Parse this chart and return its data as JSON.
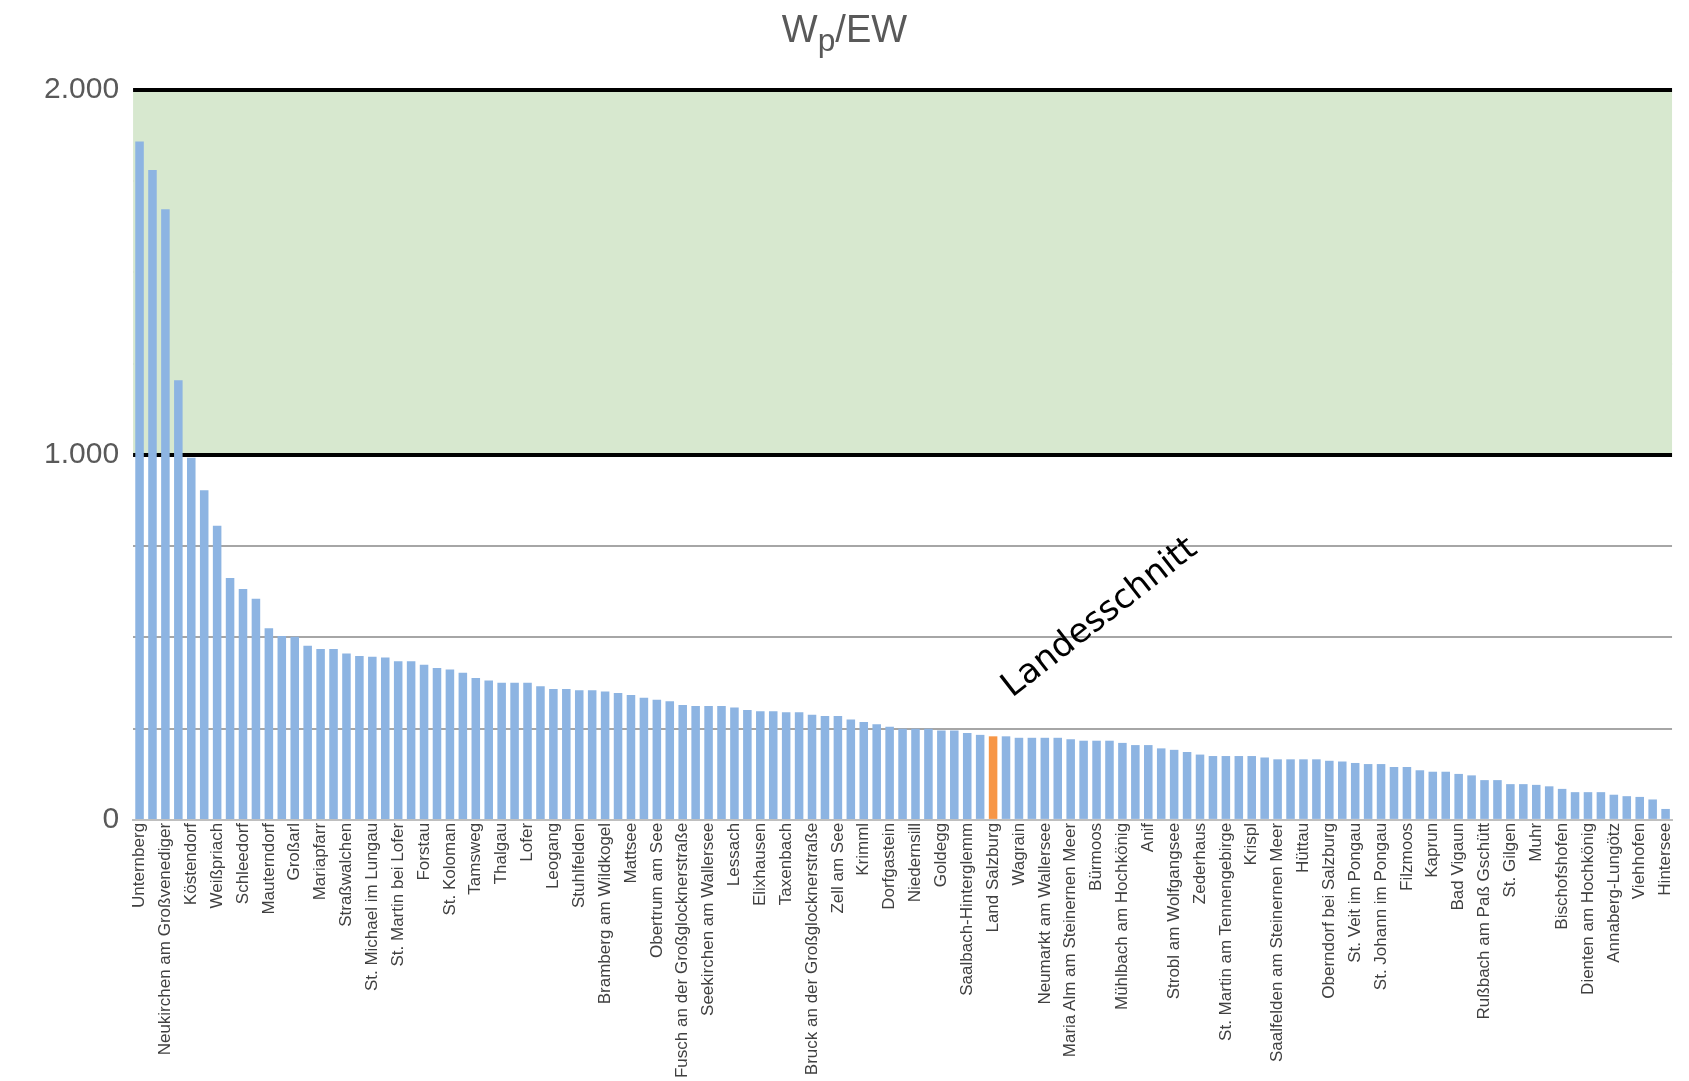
{
  "chart_data": {
    "type": "bar",
    "title": "W$_{p}$/EW",
    "categories": [
      "Unternberg",
      null,
      "Neukirchen am Großvenediger",
      null,
      "Köstendorf",
      null,
      "Weißpriach",
      null,
      "Schleedorf",
      null,
      "Mauterndorf",
      null,
      "Großarl",
      null,
      "Mariapfarr",
      null,
      "Straßwalchen",
      null,
      "St. Michael im Lungau",
      null,
      "St. Martin bei Lofer",
      null,
      "Forstau",
      null,
      "St. Koloman",
      null,
      "Tamsweg",
      null,
      "Thalgau",
      null,
      "Lofer",
      null,
      "Leogang",
      null,
      "Stuhlfelden",
      null,
      "Bramberg am Wildkogel",
      null,
      "Mattsee",
      null,
      "Obertrum am See",
      null,
      "Fusch an der Großglocknerstraße",
      null,
      "Seekirchen am Wallersee",
      null,
      "Lessach",
      null,
      "Elixhausen",
      null,
      "Taxenbach",
      null,
      "Bruck an der Großglocknerstraße",
      null,
      "Zell am See",
      null,
      "Krimml",
      null,
      "Dorfgastein",
      null,
      "Niedernsill",
      null,
      "Goldegg",
      null,
      "Saalbach-Hinterglemm",
      null,
      "Land Salzburg",
      null,
      "Wagrain",
      null,
      "Neumarkt am Wallersee",
      null,
      "Maria Alm am Steinernen Meer",
      null,
      "Bürmoos",
      null,
      "Mühlbach am Hochkönig",
      null,
      "Anif",
      null,
      "Strobl am Wolfgangsee",
      null,
      "Zederhaus",
      null,
      "St. Martin am Tennengebirge",
      null,
      "Krispl",
      null,
      "Saalfelden am Steinernen Meer",
      null,
      "Hüttau",
      null,
      "Oberndorf bei Salzburg",
      null,
      "St. Veit im Pongau",
      null,
      "St. Johann im Pongau",
      null,
      "Filzmoos",
      null,
      "Kaprun",
      null,
      "Bad Vigaun",
      null,
      "Rußbach am Paß Gschütt",
      null,
      "St. Gilgen",
      null,
      "Muhr",
      null,
      "Bischofshofen",
      null,
      "Dienten am Hochkönig",
      null,
      "Annaberg-Lungötz",
      null,
      "Viehhofen",
      null,
      "Hintersee"
    ],
    "values": [
      1859,
      1781,
      1673,
      1205,
      992,
      903,
      806,
      663,
      633,
      606,
      525,
      504,
      502,
      477,
      468,
      468,
      456,
      449,
      447,
      445,
      435,
      435,
      425,
      416,
      412,
      403,
      389,
      382,
      376,
      376,
      376,
      366,
      359,
      359,
      355,
      355,
      352,
      348,
      342,
      335,
      329,
      325,
      315,
      312,
      312,
      312,
      308,
      301,
      298,
      298,
      295,
      295,
      288,
      285,
      285,
      275,
      268,
      262,
      255,
      250,
      250,
      250,
      245,
      245,
      238,
      233,
      229,
      229,
      225,
      225,
      225,
      225,
      221,
      217,
      217,
      217,
      211,
      205,
      205,
      196,
      192,
      186,
      179,
      175,
      175,
      175,
      175,
      171,
      166,
      166,
      166,
      166,
      162,
      160,
      156,
      153,
      153,
      145,
      145,
      136,
      132,
      132,
      126,
      122,
      109,
      109,
      98,
      98,
      96,
      92,
      85,
      76,
      76,
      76,
      69,
      65,
      63,
      56,
      30
    ],
    "colors": [
      "#8db4e2",
      "#8db4e2",
      "#8db4e2",
      "#8db4e2",
      "#8db4e2",
      "#8db4e2",
      "#8db4e2",
      "#8db4e2",
      "#8db4e2",
      "#8db4e2",
      "#8db4e2",
      "#8db4e2",
      "#8db4e2",
      "#8db4e2",
      "#8db4e2",
      "#8db4e2",
      "#8db4e2",
      "#8db4e2",
      "#8db4e2",
      "#8db4e2",
      "#8db4e2",
      "#8db4e2",
      "#8db4e2",
      "#8db4e2",
      "#8db4e2",
      "#8db4e2",
      "#8db4e2",
      "#8db4e2",
      "#8db4e2",
      "#8db4e2",
      "#8db4e2",
      "#8db4e2",
      "#8db4e2",
      "#8db4e2",
      "#8db4e2",
      "#8db4e2",
      "#8db4e2",
      "#8db4e2",
      "#8db4e2",
      "#8db4e2",
      "#8db4e2",
      "#8db4e2",
      "#8db4e2",
      "#8db4e2",
      "#8db4e2",
      "#8db4e2",
      "#8db4e2",
      "#8db4e2",
      "#8db4e2",
      "#8db4e2",
      "#8db4e2",
      "#8db4e2",
      "#8db4e2",
      "#8db4e2",
      "#8db4e2",
      "#8db4e2",
      "#8db4e2",
      "#8db4e2",
      "#8db4e2",
      "#8db4e2",
      "#8db4e2",
      "#8db4e2",
      "#8db4e2",
      "#8db4e2",
      "#8db4e2",
      "#8db4e2",
      "#f79646",
      "#8db4e2",
      "#8db4e2",
      "#8db4e2",
      "#8db4e2",
      "#8db4e2",
      "#8db4e2",
      "#8db4e2",
      "#8db4e2",
      "#8db4e2",
      "#8db4e2",
      "#8db4e2",
      "#8db4e2",
      "#8db4e2",
      "#8db4e2",
      "#8db4e2",
      "#8db4e2",
      "#8db4e2",
      "#8db4e2",
      "#8db4e2",
      "#8db4e2",
      "#8db4e2",
      "#8db4e2",
      "#8db4e2",
      "#8db4e2",
      "#8db4e2",
      "#8db4e2",
      "#8db4e2",
      "#8db4e2",
      "#8db4e2",
      "#8db4e2",
      "#8db4e2",
      "#8db4e2",
      "#8db4e2",
      "#8db4e2",
      "#8db4e2",
      "#8db4e2",
      "#8db4e2",
      "#8db4e2",
      "#8db4e2",
      "#8db4e2",
      "#8db4e2",
      "#8db4e2",
      "#8db4e2",
      "#8db4e2",
      "#8db4e2",
      "#8db4e2",
      "#8db4e2",
      "#8db4e2",
      "#8db4e2",
      "#8db4e2",
      "#8db4e2",
      "#8db4e2"
    ],
    "ylim": [
      0,
      2000
    ],
    "yticks": [
      0,
      {
        "value": 250,
        "label": null
      },
      {
        "value": 500,
        "label": null
      },
      {
        "value": 750,
        "label": null
      },
      {
        "value": 1000,
        "label": "1.000"
      },
      {
        "value": 1250,
        "label": null
      },
      {
        "value": 1500,
        "label": null
      },
      {
        "value": 1750,
        "label": null
      },
      {
        "value": 2000,
        "label": "2.000"
      }
    ],
    "grid": "y",
    "legend": false,
    "bands": [
      {
        "axis": "y",
        "from": 1000,
        "to": 2000,
        "color": "#d7e8cf"
      }
    ],
    "ref_lines": [
      {
        "axis": "y",
        "value": 1000,
        "color": "#000000"
      },
      {
        "axis": "y",
        "value": 2000,
        "color": "#000000"
      }
    ],
    "annotations": [
      {
        "text": "Landesschnitt",
        "x": "Land Salzburg",
        "y": 229
      }
    ]
  }
}
